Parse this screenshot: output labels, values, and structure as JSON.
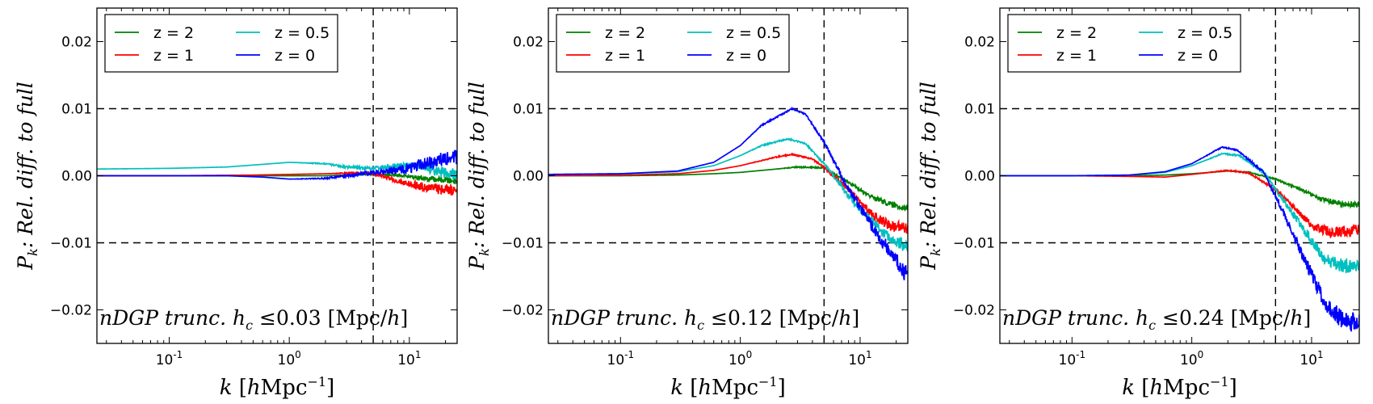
{
  "figure": {
    "panel_count": 3
  },
  "chart_data": [
    {
      "type": "line",
      "panel": "left",
      "ylabel": {
        "P": "P",
        "k": "k",
        "text": ": Rel. diff. to full"
      },
      "xlabel": {
        "k": "k",
        "units": "hMpc",
        "exp": "−1"
      },
      "xscale": "log",
      "xlim": [
        0.025,
        25
      ],
      "ylim": [
        -0.025,
        0.025
      ],
      "yticks": [
        -0.02,
        -0.01,
        0.0,
        0.01,
        0.02
      ],
      "ytick_labels": [
        "−0.02",
        "−0.01",
        "0.00",
        "0.01",
        "0.02"
      ],
      "xticks": [
        {
          "base": "10",
          "exp": "-1"
        },
        {
          "base": "10",
          "exp": "0"
        },
        {
          "base": "10",
          "exp": "1"
        }
      ],
      "hlines": [
        0.01,
        -0.01
      ],
      "vline": 5,
      "annotation": {
        "name": "nDGP",
        "mid": "trunc.",
        "h": "h",
        "hsub": "c",
        "cond": "≤0.03",
        "units": "[Mpc/",
        "h2": "h",
        "close": "]"
      },
      "series": [
        {
          "name": "z = 2",
          "color": "#008000",
          "x": [
            0.025,
            0.1,
            0.5,
            1,
            2,
            3,
            5,
            8,
            12,
            18,
            25
          ],
          "y": [
            0.0,
            0.0,
            0.0,
            0.0,
            0.0,
            0.0001,
            0.0002,
            0.0001,
            -0.0003,
            -0.0006,
            -0.0008
          ],
          "noise": [
            0,
            0,
            0,
            0,
            0,
            0,
            0.0001,
            0.0002,
            0.0003,
            0.0004,
            0.0005
          ]
        },
        {
          "name": "z = 1",
          "color": "#ff0000",
          "x": [
            0.025,
            0.1,
            0.5,
            1,
            2,
            3,
            5,
            8,
            12,
            18,
            25
          ],
          "y": [
            0.0,
            0.0,
            0.0001,
            0.0002,
            0.0003,
            0.0004,
            0.0004,
            -0.0008,
            -0.0015,
            -0.002,
            -0.0022
          ],
          "noise": [
            0,
            0,
            0,
            0,
            0,
            0.0001,
            0.0002,
            0.0004,
            0.0006,
            0.0008,
            0.0009
          ]
        },
        {
          "name": "z = 0.5",
          "color": "#00bfbf",
          "x": [
            0.025,
            0.1,
            0.3,
            0.6,
            1,
            2,
            3,
            5,
            8,
            12,
            18,
            25
          ],
          "y": [
            0.001,
            0.0011,
            0.0013,
            0.0017,
            0.002,
            0.0018,
            0.0013,
            0.0011,
            0.0014,
            0.0015,
            0.0005,
            0.0003
          ],
          "noise": [
            0,
            0,
            0,
            0,
            0,
            0.0001,
            0.0002,
            0.0003,
            0.0005,
            0.0006,
            0.0008,
            0.0009
          ]
        },
        {
          "name": "z = 0",
          "color": "#0000ff",
          "x": [
            0.025,
            0.1,
            0.3,
            0.6,
            1,
            2,
            3,
            5,
            8,
            12,
            18,
            25
          ],
          "y": [
            0.0,
            0.0,
            0.0,
            -0.0002,
            -0.0005,
            -0.0004,
            0.0,
            0.0005,
            0.0008,
            0.0015,
            0.0025,
            0.0028
          ],
          "noise": [
            0,
            0,
            0,
            0,
            0,
            0.0001,
            0.0002,
            0.0004,
            0.0006,
            0.0009,
            0.001,
            0.0011
          ]
        }
      ]
    },
    {
      "type": "line",
      "panel": "middle",
      "ylabel": {
        "P": "P",
        "k": "k",
        "text": ": Rel. diff. to full"
      },
      "xlabel": {
        "k": "k",
        "units": "hMpc",
        "exp": "−1"
      },
      "xscale": "log",
      "xlim": [
        0.025,
        25
      ],
      "ylim": [
        -0.025,
        0.025
      ],
      "yticks": [
        -0.02,
        -0.01,
        0.0,
        0.01,
        0.02
      ],
      "ytick_labels": [
        "−0.02",
        "−0.01",
        "0.00",
        "0.01",
        "0.02"
      ],
      "xticks": [
        {
          "base": "10",
          "exp": "-1"
        },
        {
          "base": "10",
          "exp": "0"
        },
        {
          "base": "10",
          "exp": "1"
        }
      ],
      "hlines": [
        0.01,
        -0.01
      ],
      "vline": 5,
      "annotation": {
        "name": "nDGP",
        "mid": "trunc.",
        "h": "h",
        "hsub": "c",
        "cond": "≤0.12",
        "units": "[Mpc/",
        "h2": "h",
        "close": "]"
      },
      "series": [
        {
          "name": "z = 2",
          "color": "#008000",
          "x": [
            0.025,
            0.1,
            0.3,
            0.6,
            1,
            2,
            3,
            5,
            8,
            12,
            18,
            25
          ],
          "y": [
            0.0,
            0.0,
            0.0001,
            0.0003,
            0.0005,
            0.001,
            0.0013,
            0.0012,
            -0.001,
            -0.003,
            -0.0043,
            -0.0048
          ],
          "noise": [
            0,
            0,
            0,
            0,
            0,
            0,
            0.0001,
            0.0001,
            0.0002,
            0.0003,
            0.0004,
            0.0005
          ]
        },
        {
          "name": "z = 1",
          "color": "#ff0000",
          "x": [
            0.025,
            0.1,
            0.3,
            0.6,
            1,
            2,
            2.7,
            4,
            5,
            8,
            12,
            18,
            25
          ],
          "y": [
            0.0,
            0.0001,
            0.0003,
            0.0008,
            0.0015,
            0.0028,
            0.0032,
            0.0025,
            0.0012,
            -0.002,
            -0.0055,
            -0.0075,
            -0.0078
          ],
          "noise": [
            0,
            0,
            0,
            0,
            0,
            0.0001,
            0.0001,
            0.0001,
            0.0002,
            0.0004,
            0.0006,
            0.0008,
            0.0009
          ]
        },
        {
          "name": "z = 0.5",
          "color": "#00bfbf",
          "x": [
            0.025,
            0.1,
            0.3,
            0.6,
            1,
            1.5,
            2.5,
            3.5,
            5,
            8,
            12,
            18,
            25
          ],
          "y": [
            0.0002,
            0.0003,
            0.0006,
            0.0015,
            0.003,
            0.0045,
            0.0055,
            0.0048,
            0.0018,
            -0.003,
            -0.0065,
            -0.0095,
            -0.0108
          ],
          "noise": [
            0,
            0,
            0,
            0,
            0,
            0.0001,
            0.0001,
            0.0001,
            0.0002,
            0.0005,
            0.0007,
            0.0009,
            0.0011
          ]
        },
        {
          "name": "z = 0",
          "color": "#0000ff",
          "x": [
            0.025,
            0.1,
            0.3,
            0.6,
            1,
            1.5,
            2.7,
            3.5,
            5,
            8,
            12,
            18,
            25
          ],
          "y": [
            0.0002,
            0.0003,
            0.0007,
            0.002,
            0.0045,
            0.0075,
            0.01,
            0.0092,
            0.005,
            -0.002,
            -0.007,
            -0.0115,
            -0.015
          ],
          "noise": [
            0,
            0,
            0,
            0,
            0,
            0.0001,
            0.0001,
            0.0001,
            0.0002,
            0.0005,
            0.0008,
            0.0011,
            0.0014
          ]
        }
      ]
    },
    {
      "type": "line",
      "panel": "right",
      "ylabel": {
        "P": "P",
        "k": "k",
        "text": ": Rel. diff. to full"
      },
      "xlabel": {
        "k": "k",
        "units": "hMpc",
        "exp": "−1"
      },
      "xscale": "log",
      "xlim": [
        0.025,
        25
      ],
      "ylim": [
        -0.025,
        0.025
      ],
      "yticks": [
        -0.02,
        -0.01,
        0.0,
        0.01,
        0.02
      ],
      "ytick_labels": [
        "−0.02",
        "−0.01",
        "0.00",
        "0.01",
        "0.02"
      ],
      "xticks": [
        {
          "base": "10",
          "exp": "-1"
        },
        {
          "base": "10",
          "exp": "0"
        },
        {
          "base": "10",
          "exp": "1"
        }
      ],
      "hlines": [
        0.01,
        -0.01
      ],
      "vline": 5,
      "annotation": {
        "name": "nDGP",
        "mid": "trunc.",
        "h": "h",
        "hsub": "c",
        "cond": "≤0.24",
        "units": "[Mpc/",
        "h2": "h",
        "close": "]"
      },
      "series": [
        {
          "name": "z = 2",
          "color": "#008000",
          "x": [
            0.025,
            0.1,
            0.3,
            0.6,
            1,
            2,
            3,
            5,
            8,
            12,
            18,
            25
          ],
          "y": [
            0.0,
            0.0,
            0.0,
            0.0001,
            0.0003,
            0.0007,
            0.0005,
            -0.0005,
            -0.002,
            -0.0035,
            -0.0042,
            -0.0043
          ],
          "noise": [
            0,
            0,
            0,
            0,
            0,
            0,
            0.0001,
            0.0001,
            0.0002,
            0.0003,
            0.0004,
            0.0005
          ]
        },
        {
          "name": "z = 1",
          "color": "#ff0000",
          "x": [
            0.025,
            0.1,
            0.3,
            0.6,
            1,
            2,
            3,
            5,
            7,
            10,
            15,
            25
          ],
          "y": [
            0.0,
            0.0,
            -0.0001,
            -0.0002,
            0.0002,
            0.0008,
            0.0004,
            -0.002,
            -0.0045,
            -0.0075,
            -0.0085,
            -0.008
          ],
          "noise": [
            0,
            0,
            0,
            0,
            0,
            0.0001,
            0.0001,
            0.0002,
            0.0004,
            0.0006,
            0.0008,
            0.0009
          ]
        },
        {
          "name": "z = 0.5",
          "color": "#00bfbf",
          "x": [
            0.025,
            0.1,
            0.3,
            0.6,
            1,
            1.8,
            2.5,
            4,
            6,
            9,
            13,
            18,
            25
          ],
          "y": [
            0.0,
            0.0,
            0.0001,
            0.0005,
            0.0015,
            0.0033,
            0.003,
            0.0005,
            -0.004,
            -0.0085,
            -0.0125,
            -0.0135,
            -0.0132
          ],
          "noise": [
            0,
            0,
            0,
            0,
            0,
            0.0001,
            0.0001,
            0.0002,
            0.0004,
            0.0007,
            0.0009,
            0.0011,
            0.0012
          ]
        },
        {
          "name": "z = 0",
          "color": "#0000ff",
          "x": [
            0.025,
            0.1,
            0.3,
            0.6,
            1,
            1.8,
            2.4,
            4,
            6,
            9,
            13,
            18,
            25
          ],
          "y": [
            0.0,
            0.0,
            0.0001,
            0.0006,
            0.0018,
            0.0043,
            0.0038,
            0.0005,
            -0.006,
            -0.013,
            -0.019,
            -0.0215,
            -0.022
          ],
          "noise": [
            0,
            0,
            0,
            0,
            0,
            0.0001,
            0.0001,
            0.0002,
            0.0005,
            0.0009,
            0.0012,
            0.0014,
            0.0016
          ]
        }
      ]
    }
  ]
}
